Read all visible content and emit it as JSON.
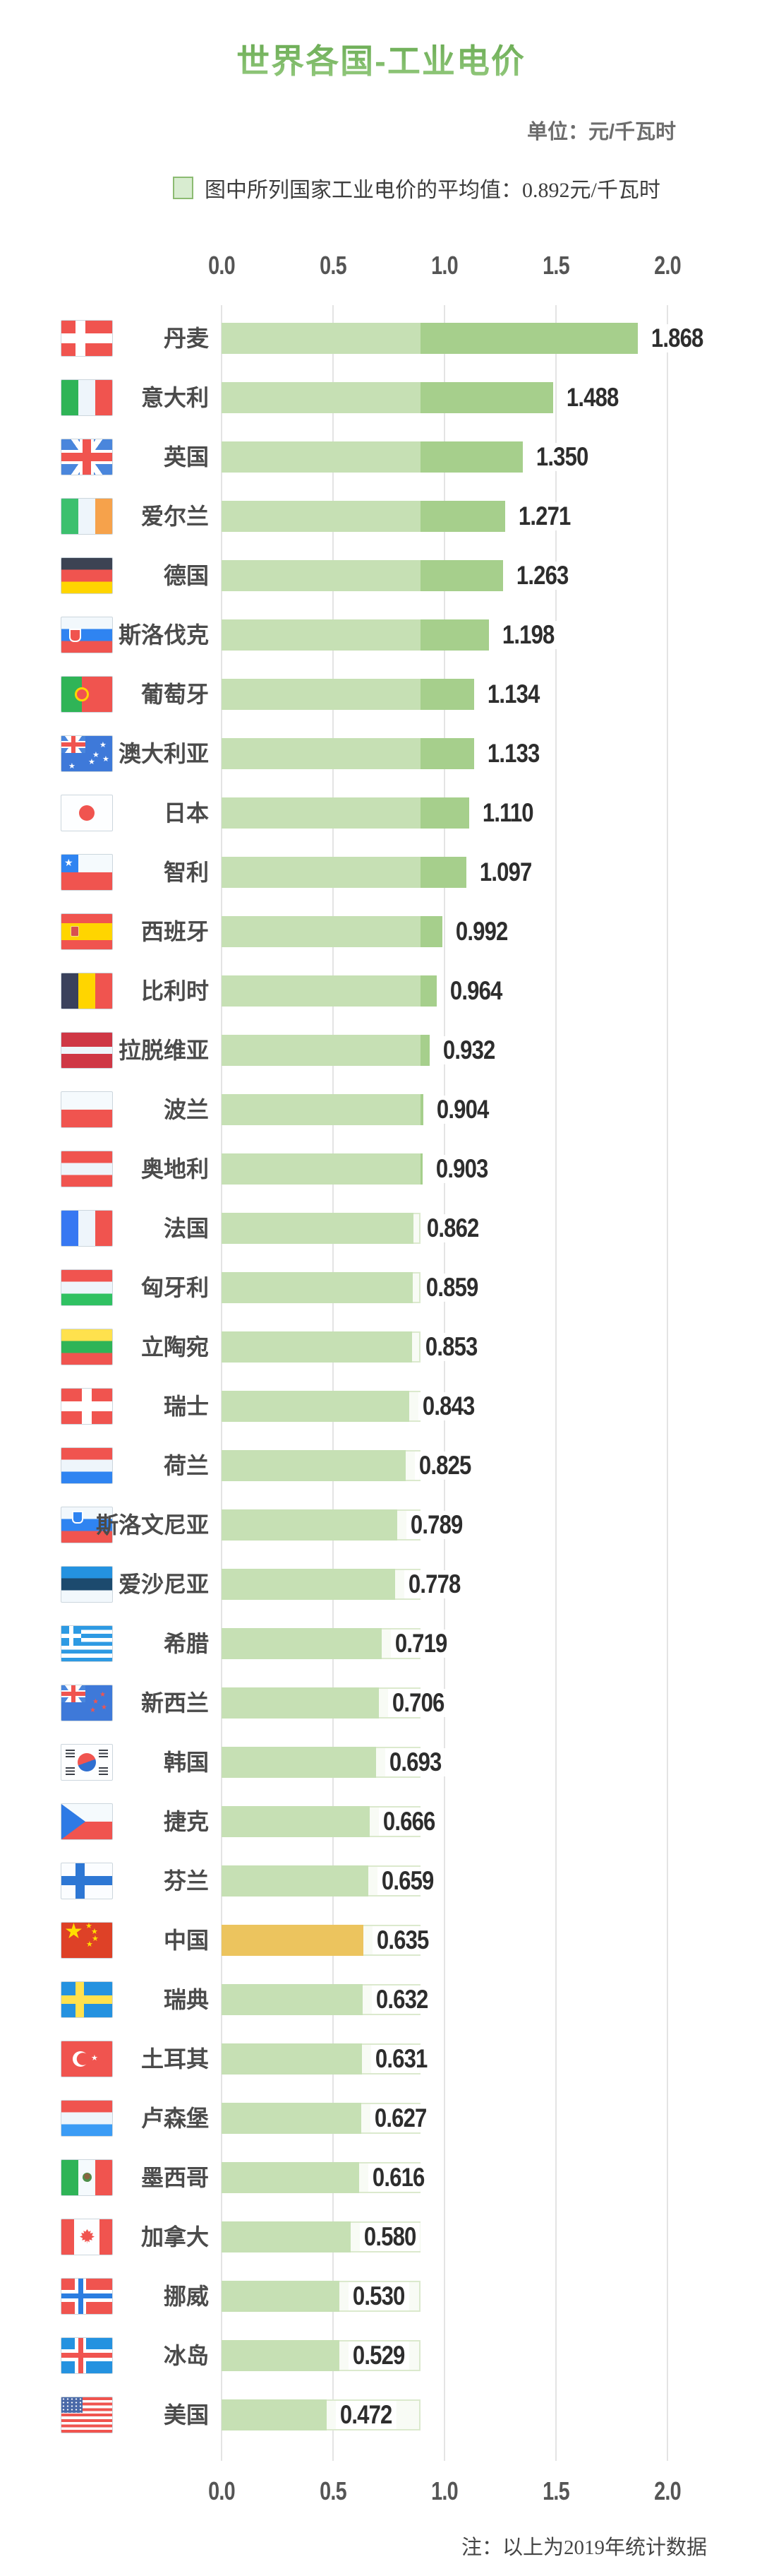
{
  "title": "世界各国-工业电价",
  "unit_label": "单位：元/千瓦时",
  "legend": {
    "label": "图中所列国家工业电价的平均值：0.892元/千瓦时"
  },
  "note": "注：以上为2019年统计数据",
  "axis": {
    "ticks": [
      "0.0",
      "0.5",
      "1.0",
      "1.5",
      "2.0"
    ]
  },
  "colors": {
    "title_green_top": "#63a64c",
    "title_green_bottom": "#96cb80",
    "bar_below_average": "#c6e0b4",
    "bar_above_average": "#a6cf8c",
    "highlight_gold": "#ecc45e",
    "average_track_fill": "#f8fbf5",
    "average_track_border": "#dbe9cd",
    "gridline": "#e4e4e4",
    "text_gray": "#4b4b4b"
  },
  "chart_data": {
    "type": "bar",
    "orientation": "horizontal",
    "title": "世界各国-工业电价",
    "unit": "元/千瓦时",
    "average": 0.892,
    "xlim": [
      0,
      2.0
    ],
    "xticks": [
      0.0,
      0.5,
      1.0,
      1.5,
      2.0
    ],
    "grid": true,
    "note": "注：以上为2019年统计数据",
    "countries": [
      {
        "name": "丹麦",
        "flag": "dk",
        "value": 1.868,
        "highlight": false
      },
      {
        "name": "意大利",
        "flag": "it",
        "value": 1.488,
        "highlight": false
      },
      {
        "name": "英国",
        "flag": "gb",
        "value": 1.35,
        "highlight": false
      },
      {
        "name": "爱尔兰",
        "flag": "ie",
        "value": 1.271,
        "highlight": false
      },
      {
        "name": "德国",
        "flag": "de",
        "value": 1.263,
        "highlight": false
      },
      {
        "name": "斯洛伐克",
        "flag": "sk",
        "value": 1.198,
        "highlight": false
      },
      {
        "name": "葡萄牙",
        "flag": "pt",
        "value": 1.134,
        "highlight": false
      },
      {
        "name": "澳大利亚",
        "flag": "au",
        "value": 1.133,
        "highlight": false
      },
      {
        "name": "日本",
        "flag": "jp",
        "value": 1.11,
        "highlight": false
      },
      {
        "name": "智利",
        "flag": "cl",
        "value": 1.097,
        "highlight": false
      },
      {
        "name": "西班牙",
        "flag": "es",
        "value": 0.992,
        "highlight": false
      },
      {
        "name": "比利时",
        "flag": "be",
        "value": 0.964,
        "highlight": false
      },
      {
        "name": "拉脱维亚",
        "flag": "lv",
        "value": 0.932,
        "highlight": false
      },
      {
        "name": "波兰",
        "flag": "pl",
        "value": 0.904,
        "highlight": false
      },
      {
        "name": "奥地利",
        "flag": "at",
        "value": 0.903,
        "highlight": false
      },
      {
        "name": "法国",
        "flag": "fr",
        "value": 0.862,
        "highlight": false
      },
      {
        "name": "匈牙利",
        "flag": "hu",
        "value": 0.859,
        "highlight": false
      },
      {
        "name": "立陶宛",
        "flag": "lt",
        "value": 0.853,
        "highlight": false
      },
      {
        "name": "瑞士",
        "flag": "ch",
        "value": 0.843,
        "highlight": false
      },
      {
        "name": "荷兰",
        "flag": "nl",
        "value": 0.825,
        "highlight": false
      },
      {
        "name": "斯洛文尼亚",
        "flag": "si",
        "value": 0.789,
        "highlight": false
      },
      {
        "name": "爱沙尼亚",
        "flag": "ee",
        "value": 0.778,
        "highlight": false
      },
      {
        "name": "希腊",
        "flag": "gr",
        "value": 0.719,
        "highlight": false
      },
      {
        "name": "新西兰",
        "flag": "nz",
        "value": 0.706,
        "highlight": false
      },
      {
        "name": "韩国",
        "flag": "kr",
        "value": 0.693,
        "highlight": false
      },
      {
        "name": "捷克",
        "flag": "cz",
        "value": 0.666,
        "highlight": false
      },
      {
        "name": "芬兰",
        "flag": "fi",
        "value": 0.659,
        "highlight": false
      },
      {
        "name": "中国",
        "flag": "cn",
        "value": 0.635,
        "highlight": true
      },
      {
        "name": "瑞典",
        "flag": "se",
        "value": 0.632,
        "highlight": false
      },
      {
        "name": "土耳其",
        "flag": "tr",
        "value": 0.631,
        "highlight": false
      },
      {
        "name": "卢森堡",
        "flag": "lu",
        "value": 0.627,
        "highlight": false
      },
      {
        "name": "墨西哥",
        "flag": "mx",
        "value": 0.616,
        "highlight": false
      },
      {
        "name": "加拿大",
        "flag": "ca",
        "value": 0.58,
        "highlight": false
      },
      {
        "name": "挪威",
        "flag": "no",
        "value": 0.53,
        "highlight": false
      },
      {
        "name": "冰岛",
        "flag": "is",
        "value": 0.529,
        "highlight": false
      },
      {
        "name": "美国",
        "flag": "us",
        "value": 0.472,
        "highlight": false
      }
    ]
  }
}
